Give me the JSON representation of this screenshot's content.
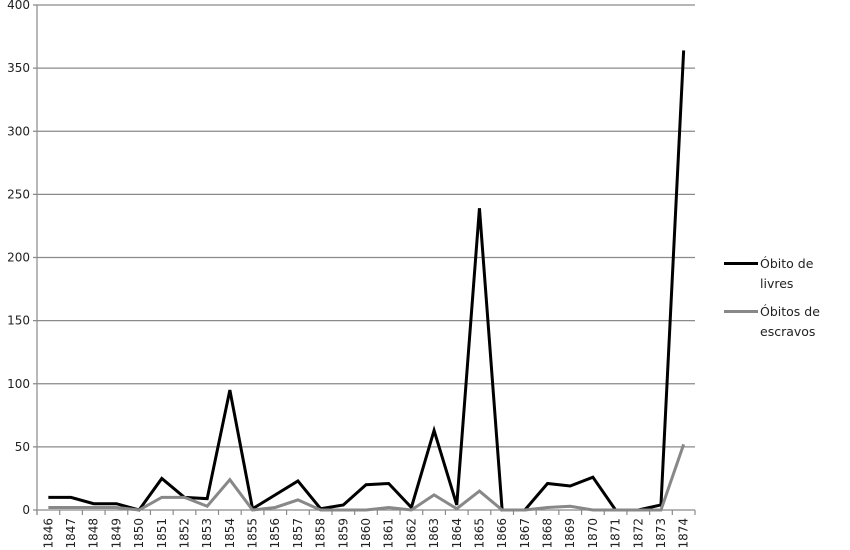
{
  "chart_data": {
    "type": "line",
    "title": "",
    "xlabel": "",
    "ylabel": "",
    "ylim": [
      0,
      400
    ],
    "yticks": [
      0,
      50,
      100,
      150,
      200,
      250,
      300,
      350,
      400
    ],
    "grid": true,
    "legend_position": "right",
    "categories": [
      "1846",
      "1847",
      "1848",
      "1849",
      "1850",
      "1851",
      "1852",
      "1853",
      "1854",
      "1855",
      "1856",
      "1857",
      "1858",
      "1859",
      "1860",
      "1861",
      "1862",
      "1863",
      "1864",
      "1865",
      "1866",
      "1867",
      "1868",
      "1869",
      "1870",
      "1871",
      "1872",
      "1873",
      "1874"
    ],
    "series": [
      {
        "name": "Óbito de livres",
        "color": "#000000",
        "values": [
          10,
          10,
          5,
          5,
          0,
          25,
          10,
          9,
          95,
          1,
          12,
          23,
          1,
          4,
          20,
          21,
          2,
          63,
          4,
          239,
          0,
          0,
          21,
          19,
          26,
          0,
          0,
          4,
          364
        ]
      },
      {
        "name": "Óbitos de escravos",
        "color": "#888888",
        "values": [
          2,
          2,
          2,
          2,
          0,
          10,
          10,
          3,
          24,
          0,
          2,
          8,
          0,
          0,
          0,
          2,
          0,
          12,
          1,
          15,
          0,
          0,
          2,
          3,
          0,
          0,
          0,
          0,
          52
        ]
      }
    ]
  }
}
